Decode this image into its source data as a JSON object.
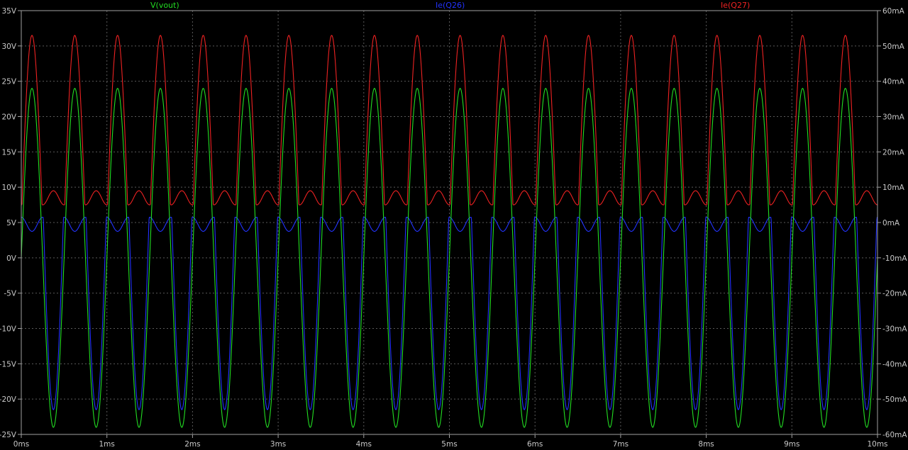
{
  "chart_data": {
    "type": "line",
    "x": {
      "unit": "ms",
      "range": [
        0,
        10
      ],
      "ticks": [
        "0ms",
        "1ms",
        "2ms",
        "3ms",
        "4ms",
        "5ms",
        "6ms",
        "7ms",
        "8ms",
        "9ms",
        "10ms"
      ]
    },
    "y_left": {
      "unit": "V",
      "range": [
        -25,
        35
      ],
      "ticks": [
        "35V",
        "30V",
        "25V",
        "20V",
        "15V",
        "10V",
        "5V",
        "0V",
        "-5V",
        "-10V",
        "-15V",
        "-20V",
        "-25V"
      ]
    },
    "y_right": {
      "unit": "mA",
      "range": [
        -60,
        60
      ],
      "ticks": [
        "60mA",
        "50mA",
        "40mA",
        "30mA",
        "20mA",
        "10mA",
        "0mA",
        "-10mA",
        "-20mA",
        "-30mA",
        "-40mA",
        "-50mA",
        "-60mA"
      ]
    },
    "grid": true,
    "background": "#000000",
    "frame_color": "#a0a0a0",
    "grid_color": "#5a5a5a",
    "series": [
      {
        "name": "V(vout)",
        "color": "#22dd22",
        "axis": "left",
        "waveform": "sine",
        "frequency_khz": 2,
        "amplitude_v": 24,
        "offset_v": 0,
        "peak_v": 24,
        "trough_v": -24
      },
      {
        "name": "Ie(Q26)",
        "color": "#2233ff",
        "axis": "right",
        "waveform": "negative half-sine conduction with idle ripple",
        "frequency_khz": 2,
        "min_ma": -53,
        "idle_ma": 1,
        "idle_ripple_ma": [
          -2.5,
          1.5
        ]
      },
      {
        "name": "Ie(Q27)",
        "color": "#ee2222",
        "axis": "right",
        "waveform": "positive half-sine conduction with idle ripple",
        "frequency_khz": 2,
        "max_ma": 53,
        "idle_ma": 5,
        "idle_ripple_ma": [
          5,
          9
        ]
      }
    ]
  }
}
